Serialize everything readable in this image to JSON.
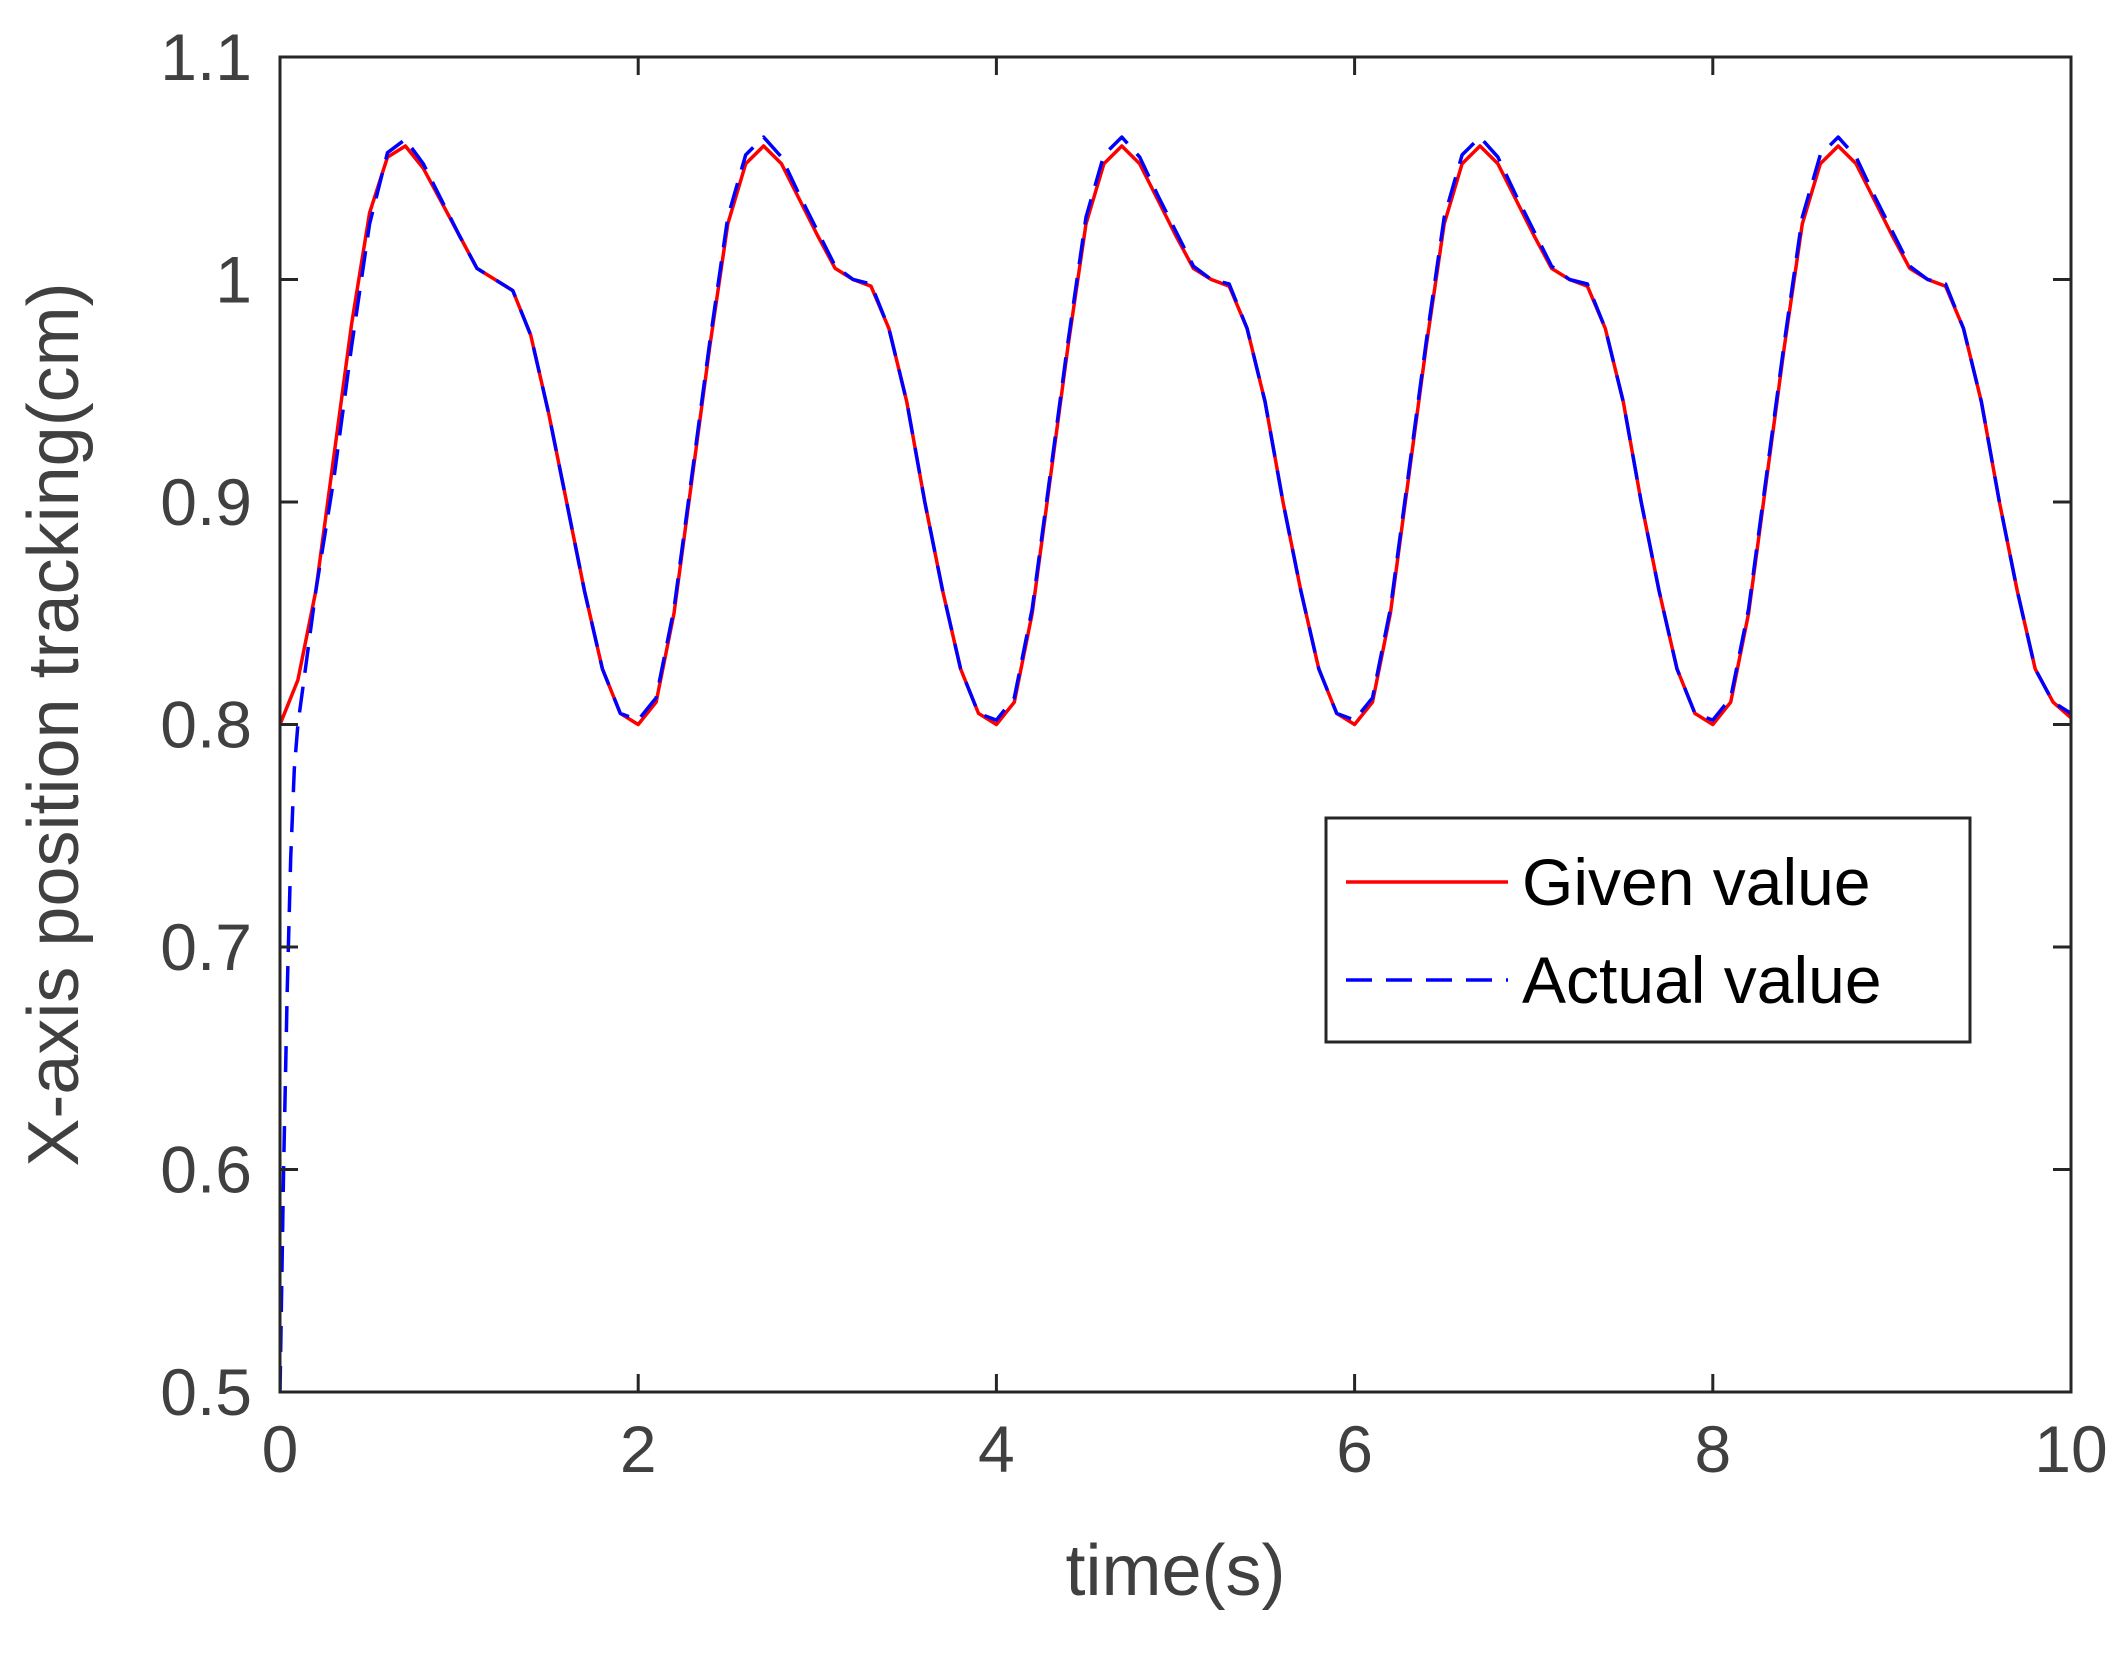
{
  "chart_data": {
    "type": "line",
    "title": "",
    "xlabel": "time(s)",
    "ylabel": "X-axis position tracking(cm)",
    "xlim": [
      0,
      10
    ],
    "ylim": [
      0.5,
      1.1
    ],
    "xticks": [
      0,
      2,
      4,
      6,
      8,
      10
    ],
    "xtick_labels": [
      "0",
      "2",
      "4",
      "6",
      "8",
      "10"
    ],
    "yticks": [
      0.5,
      0.6,
      0.7,
      0.8,
      0.9,
      1.0,
      1.1
    ],
    "ytick_labels": [
      "0.5",
      "0.6",
      "0.7",
      "0.8",
      "0.9",
      "1",
      "1.1"
    ],
    "grid": false,
    "legend_position": "middle-right",
    "series": [
      {
        "name": "Given value",
        "color": "#ff0000",
        "style": "solid",
        "x": [
          0,
          0.1,
          0.2,
          0.3,
          0.4,
          0.5,
          0.6,
          0.7,
          0.8,
          0.9,
          1.0,
          1.1,
          1.2,
          1.3,
          1.4,
          1.5,
          1.6,
          1.7,
          1.8,
          1.9,
          2.0,
          2.1,
          2.2,
          2.3,
          2.4,
          2.5,
          2.6,
          2.7,
          2.8,
          2.9,
          3.0,
          3.1,
          3.2,
          3.3,
          3.4,
          3.5,
          3.6,
          3.7,
          3.8,
          3.9,
          4.0,
          4.1,
          4.2,
          4.3,
          4.4,
          4.5,
          4.6,
          4.7,
          4.8,
          4.9,
          5.0,
          5.1,
          5.2,
          5.3,
          5.4,
          5.5,
          5.6,
          5.7,
          5.8,
          5.9,
          6.0,
          6.1,
          6.2,
          6.3,
          6.4,
          6.5,
          6.6,
          6.7,
          6.8,
          6.9,
          7.0,
          7.1,
          7.2,
          7.3,
          7.4,
          7.5,
          7.6,
          7.7,
          7.8,
          7.9,
          8.0,
          8.1,
          8.2,
          8.3,
          8.4,
          8.5,
          8.6,
          8.7,
          8.8,
          8.9,
          9.0,
          9.1,
          9.2,
          9.3,
          9.4,
          9.5,
          9.6,
          9.7,
          9.8,
          9.9,
          10.0
        ],
        "y": [
          0.8,
          0.82,
          0.86,
          0.92,
          0.98,
          1.03,
          1.055,
          1.06,
          1.05,
          1.035,
          1.02,
          1.005,
          1.0,
          0.995,
          0.975,
          0.94,
          0.9,
          0.86,
          0.825,
          0.805,
          0.8,
          0.81,
          0.85,
          0.91,
          0.97,
          1.025,
          1.052,
          1.06,
          1.052,
          1.036,
          1.02,
          1.005,
          1.0,
          0.997,
          0.978,
          0.945,
          0.9,
          0.86,
          0.825,
          0.805,
          0.8,
          0.81,
          0.85,
          0.91,
          0.97,
          1.025,
          1.052,
          1.06,
          1.052,
          1.036,
          1.02,
          1.005,
          1.0,
          0.997,
          0.978,
          0.945,
          0.9,
          0.86,
          0.825,
          0.805,
          0.8,
          0.81,
          0.85,
          0.91,
          0.97,
          1.025,
          1.052,
          1.06,
          1.052,
          1.036,
          1.02,
          1.005,
          1.0,
          0.997,
          0.978,
          0.945,
          0.9,
          0.86,
          0.825,
          0.805,
          0.8,
          0.81,
          0.85,
          0.91,
          0.97,
          1.025,
          1.052,
          1.06,
          1.052,
          1.036,
          1.02,
          1.005,
          1.0,
          0.997,
          0.978,
          0.945,
          0.9,
          0.86,
          0.825,
          0.81,
          0.803
        ]
      },
      {
        "name": "Actual value",
        "color": "#0000ff",
        "style": "dashed",
        "x": [
          0,
          0.02,
          0.04,
          0.06,
          0.08,
          0.1,
          0.15,
          0.2,
          0.3,
          0.4,
          0.5,
          0.6,
          0.7,
          0.8,
          0.9,
          1.0,
          1.1,
          1.2,
          1.3,
          1.4,
          1.5,
          1.6,
          1.7,
          1.8,
          1.9,
          2.0,
          2.1,
          2.2,
          2.3,
          2.4,
          2.5,
          2.6,
          2.7,
          2.8,
          2.9,
          3.0,
          3.1,
          3.2,
          3.3,
          3.4,
          3.5,
          3.6,
          3.7,
          3.8,
          3.9,
          4.0,
          4.1,
          4.2,
          4.3,
          4.4,
          4.5,
          4.6,
          4.7,
          4.8,
          4.9,
          5.0,
          5.1,
          5.2,
          5.3,
          5.4,
          5.5,
          5.6,
          5.7,
          5.8,
          5.9,
          6.0,
          6.1,
          6.2,
          6.3,
          6.4,
          6.5,
          6.6,
          6.7,
          6.8,
          6.9,
          7.0,
          7.1,
          7.2,
          7.3,
          7.4,
          7.5,
          7.6,
          7.7,
          7.8,
          7.9,
          8.0,
          8.1,
          8.2,
          8.3,
          8.4,
          8.5,
          8.6,
          8.7,
          8.8,
          8.9,
          9.0,
          9.1,
          9.2,
          9.3,
          9.4,
          9.5,
          9.6,
          9.7,
          9.8,
          9.9,
          10.0
        ],
        "y": [
          0.5,
          0.6,
          0.68,
          0.74,
          0.78,
          0.8,
          0.83,
          0.86,
          0.91,
          0.97,
          1.025,
          1.057,
          1.063,
          1.052,
          1.036,
          1.02,
          1.005,
          1.0,
          0.995,
          0.975,
          0.94,
          0.9,
          0.86,
          0.825,
          0.805,
          0.802,
          0.812,
          0.852,
          0.912,
          0.972,
          1.028,
          1.056,
          1.064,
          1.055,
          1.038,
          1.022,
          1.006,
          1.0,
          0.998,
          0.978,
          0.945,
          0.9,
          0.86,
          0.825,
          0.805,
          0.802,
          0.812,
          0.852,
          0.912,
          0.972,
          1.028,
          1.056,
          1.064,
          1.055,
          1.038,
          1.022,
          1.006,
          1.0,
          0.998,
          0.978,
          0.945,
          0.9,
          0.86,
          0.825,
          0.805,
          0.802,
          0.812,
          0.852,
          0.912,
          0.972,
          1.028,
          1.056,
          1.064,
          1.055,
          1.038,
          1.022,
          1.006,
          1.0,
          0.998,
          0.978,
          0.945,
          0.9,
          0.86,
          0.825,
          0.805,
          0.802,
          0.812,
          0.852,
          0.912,
          0.972,
          1.028,
          1.056,
          1.064,
          1.055,
          1.038,
          1.022,
          1.006,
          1.0,
          0.998,
          0.978,
          0.945,
          0.9,
          0.86,
          0.825,
          0.81,
          0.805
        ]
      }
    ]
  }
}
